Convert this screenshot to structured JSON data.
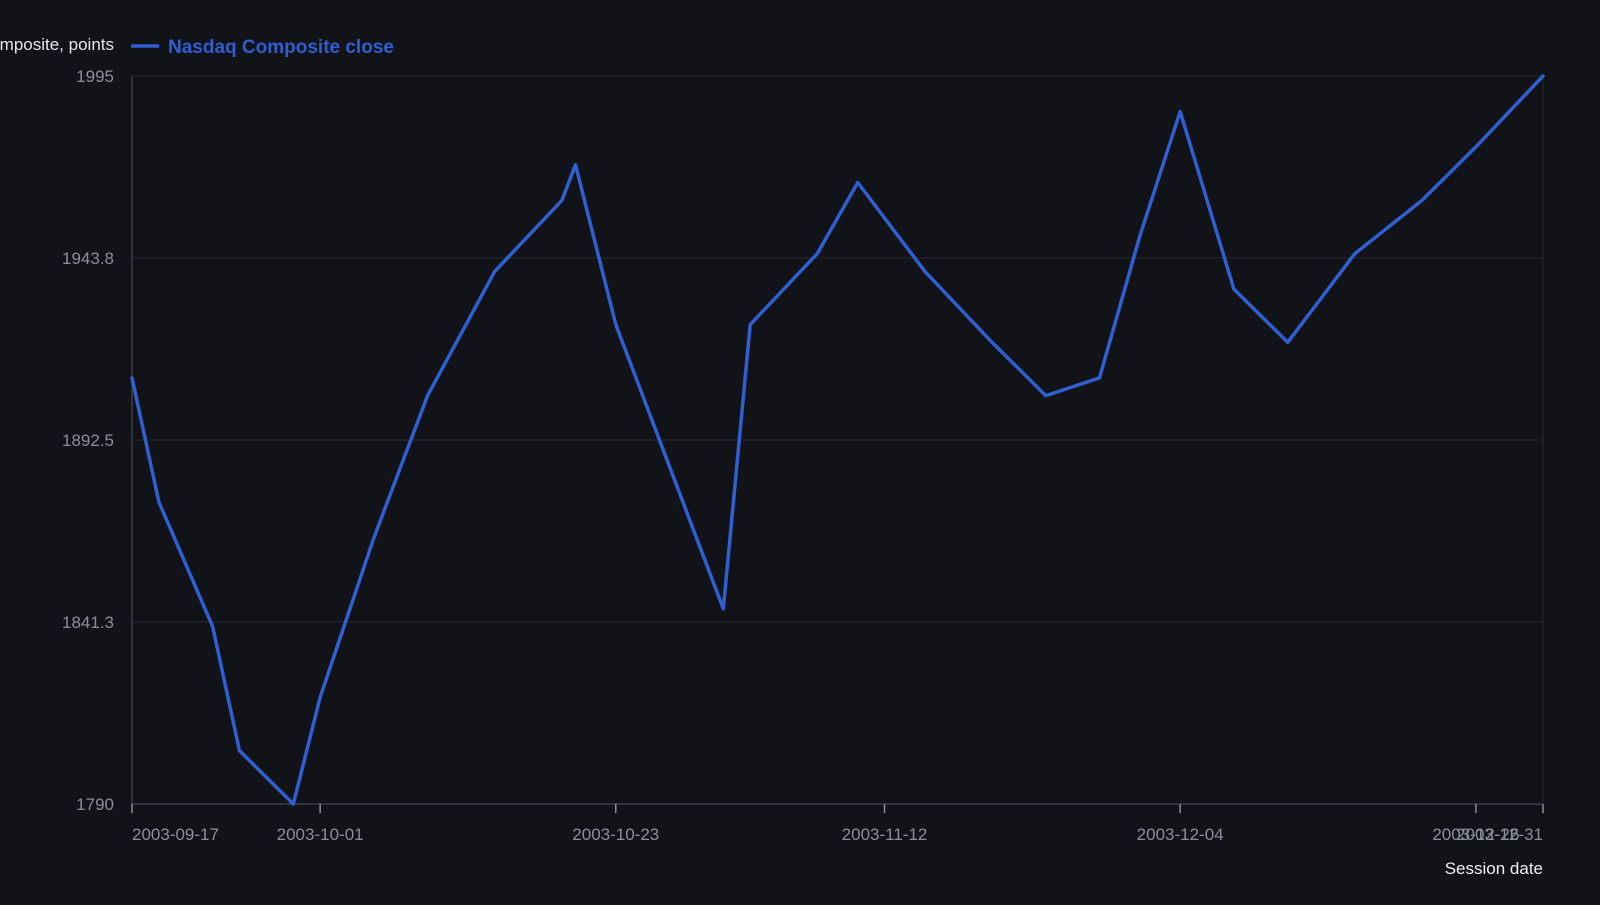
{
  "chart_data": {
    "type": "line",
    "ylabel": "Nasdaq Composite, points",
    "xlabel": "Session date",
    "ylim": [
      1790,
      1995
    ],
    "yticks": [
      "1790",
      "1841.3",
      "1892.5",
      "1943.8",
      "1995"
    ],
    "xlim": [
      "2003-09-17",
      "2003-12-31"
    ],
    "xticks": [
      "2003-09-17",
      "2003-10-01",
      "2003-10-23",
      "2003-11-12",
      "2003-12-04",
      "2003-12-26",
      "2003-12-31"
    ],
    "grid": true,
    "legend_position": "top",
    "series": [
      {
        "name": "Nasdaq Composite close",
        "color": "#2f5fd0",
        "x": [
          "2003-09-17",
          "2003-09-19",
          "2003-09-23",
          "2003-09-25",
          "2003-09-29",
          "2003-10-01",
          "2003-10-05",
          "2003-10-09",
          "2003-10-14",
          "2003-10-19",
          "2003-10-20",
          "2003-10-23",
          "2003-10-31",
          "2003-11-02",
          "2003-11-07",
          "2003-11-10",
          "2003-11-15",
          "2003-11-20",
          "2003-11-24",
          "2003-11-28",
          "2003-12-01",
          "2003-12-04",
          "2003-12-08",
          "2003-12-12",
          "2003-12-17",
          "2003-12-22",
          "2003-12-26",
          "2003-12-31"
        ],
        "values": [
          1910,
          1875,
          1840,
          1805,
          1790,
          1820,
          1865,
          1905,
          1940,
          1960,
          1970,
          1925,
          1845,
          1925,
          1945,
          1965,
          1940,
          1920,
          1905,
          1910,
          1950,
          1985,
          1935,
          1920,
          1945,
          1960,
          1975,
          1995
        ]
      }
    ]
  }
}
